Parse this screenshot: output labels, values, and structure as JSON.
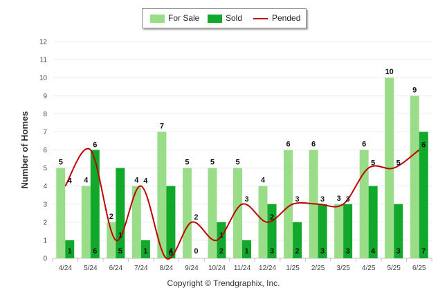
{
  "chart_data": {
    "type": "bar",
    "ylabel": "Number of Homes",
    "ylim": [
      0,
      12
    ],
    "yticks": [
      "0",
      "1",
      "2",
      "3",
      "4",
      "5",
      "6",
      "7",
      "8",
      "9",
      "10",
      "11",
      "12"
    ],
    "grid": true,
    "legend_placement": "top-center",
    "categories": [
      "4/24",
      "5/24",
      "6/24",
      "7/24",
      "8/24",
      "9/24",
      "10/24",
      "11/24",
      "12/24",
      "1/25",
      "2/25",
      "3/25",
      "4/25",
      "5/25",
      "6/25"
    ],
    "series": [
      {
        "name": "For Sale",
        "kind": "bar",
        "color": "#99dd88",
        "values": [
          5,
          4,
          2,
          4,
          7,
          5,
          5,
          5,
          4,
          6,
          6,
          3,
          6,
          10,
          9
        ]
      },
      {
        "name": "Sold",
        "kind": "bar",
        "color": "#11a82b",
        "values": [
          1,
          6,
          5,
          1,
          4,
          0,
          2,
          1,
          3,
          2,
          3,
          3,
          4,
          3,
          7
        ]
      },
      {
        "name": "Pended",
        "kind": "line",
        "color": "#c00000",
        "values": [
          4,
          6,
          1,
          4,
          0,
          2,
          1,
          3,
          2,
          3,
          3,
          3,
          5,
          5,
          6
        ]
      }
    ]
  },
  "footer": {
    "copyright": "Copyright © Trendgraphix, Inc."
  }
}
